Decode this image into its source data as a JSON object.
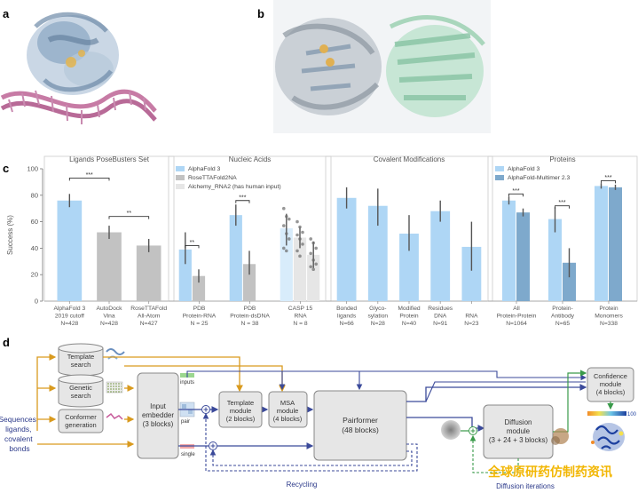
{
  "panels": {
    "a": "a",
    "b": "b",
    "c": "c",
    "d": "d"
  },
  "chart_data": [
    {
      "type": "bar",
      "title": "Ligands PoseBusters Set",
      "ylabel": "Success (%)",
      "ylim": [
        0,
        100
      ],
      "yticks": [
        "0",
        "20",
        "40",
        "60",
        "80",
        "100"
      ],
      "categories": [
        [
          "AlphaFold 3",
          "2019 cutoff",
          "N=428"
        ],
        [
          "AutoDock",
          "Vina",
          "N=428"
        ],
        [
          "RoseTTAFold",
          "All-Atom",
          "N=427"
        ]
      ],
      "values": [
        76,
        52,
        42
      ],
      "errors": [
        [
          71,
          81
        ],
        [
          47,
          57
        ],
        [
          37,
          47
        ]
      ],
      "colors": [
        "#aed6f5",
        "#c2c2c2",
        "#c2c2c2"
      ],
      "significance": [
        {
          "from": 0,
          "to": 1,
          "label": "***",
          "y": 93
        },
        {
          "from": 1,
          "to": 2,
          "label": "**",
          "y": 64
        }
      ]
    },
    {
      "type": "bar",
      "title": "Nucleic Acids",
      "legend": [
        {
          "name": "AlphaFold 3",
          "color": "#aed6f5"
        },
        {
          "name": "RoseTTAFold2NA",
          "color": "#c2c2c2"
        },
        {
          "name": "Alchemy_RNA2 (has human input)",
          "color": "#e6e6e6"
        }
      ],
      "categories": [
        [
          "PDB",
          "Protein-RNA",
          "N = 25"
        ],
        [
          "PDB",
          "Protein-dsDNA",
          "N = 38"
        ],
        [
          "CASP 15",
          "RNA",
          "N = 8"
        ]
      ],
      "series": [
        {
          "name": "AlphaFold 3",
          "values": [
            39,
            65,
            55
          ],
          "errors": [
            [
              28,
              52
            ],
            [
              57,
              73
            ],
            [
              42,
              66
            ]
          ],
          "color": "#aed6f5",
          "lightColor": "#d8ecfb"
        },
        {
          "name": "RoseTTAFold2NA",
          "values": [
            19,
            28,
            48
          ],
          "errors": [
            [
              14,
              24
            ],
            [
              20,
              38
            ],
            [
              40,
              56
            ]
          ],
          "color": "#c2c2c2",
          "lightColor": "#e6e6e6"
        },
        {
          "name": "Alchemy_RNA2 (has human input)",
          "values": [
            null,
            null,
            35
          ],
          "errors": [
            null,
            null,
            [
              25,
              45
            ]
          ],
          "color": "#e6e6e6",
          "lightColor": "#e6e6e6"
        }
      ],
      "significance": [
        {
          "group": 0,
          "label": "**",
          "y": 42
        },
        {
          "group": 1,
          "label": "***",
          "y": 76
        }
      ],
      "points": [
        {
          "group": 2,
          "series": 0,
          "values": [
            70,
            64,
            62,
            57,
            51,
            47,
            40,
            38
          ]
        },
        {
          "group": 2,
          "series": 1,
          "values": [
            60,
            56,
            52,
            50,
            47,
            43,
            38,
            34
          ]
        },
        {
          "group": 2,
          "series": 2,
          "values": [
            47,
            44,
            40,
            36,
            31,
            28,
            26,
            24
          ]
        }
      ]
    },
    {
      "type": "bar",
      "title": "Covalent Modifications",
      "categories": [
        [
          "Bonded",
          "ligands",
          "N=66"
        ],
        [
          "Glyco-",
          "sylation",
          "N=28"
        ],
        [
          "Modified",
          "Protein",
          "N=40"
        ],
        [
          "Residues",
          "DNA",
          "N=91"
        ],
        [
          "",
          "RNA",
          "N=23"
        ]
      ],
      "values": [
        78,
        72,
        51,
        68,
        41
      ],
      "errors": [
        [
          70,
          86
        ],
        [
          57,
          85
        ],
        [
          38,
          65
        ],
        [
          60,
          76
        ],
        [
          23,
          60
        ]
      ],
      "colors": [
        "#aed6f5",
        "#aed6f5",
        "#aed6f5",
        "#aed6f5",
        "#aed6f5"
      ]
    },
    {
      "type": "bar",
      "title": "Proteins",
      "legend": [
        {
          "name": "AlphaFold 3",
          "color": "#aed6f5"
        },
        {
          "name": "AlphaFold-Multimer 2.3",
          "color": "#7ea9cc"
        }
      ],
      "categories": [
        [
          "All",
          "Protein-Protein",
          "N=1064"
        ],
        [
          "Protein-",
          "Antibody",
          "N=65"
        ],
        [
          "Protein",
          "Monomers",
          "N=338"
        ]
      ],
      "series": [
        {
          "name": "AlphaFold 3",
          "values": [
            76,
            62,
            87
          ],
          "errors": [
            [
              73,
              79
            ],
            [
              52,
              71
            ],
            [
              85,
              89
            ]
          ],
          "color": "#aed6f5"
        },
        {
          "name": "AlphaFold-Multimer 2.3",
          "values": [
            67,
            29,
            86
          ],
          "errors": [
            [
              64,
              70
            ],
            [
              18,
              40
            ],
            [
              84,
              88
            ]
          ],
          "color": "#7ea9cc"
        }
      ],
      "significance": [
        {
          "group": 0,
          "label": "***",
          "y": 81
        },
        {
          "group": 1,
          "label": "***",
          "y": 72
        },
        {
          "group": 2,
          "label": "***",
          "y": 91
        }
      ]
    }
  ],
  "diagram": {
    "inputs_label": [
      "Sequences,",
      "ligands,",
      "covalent",
      "bonds"
    ],
    "template_search": [
      "Template",
      "search"
    ],
    "genetic_search": [
      "Genetic",
      "search"
    ],
    "conformer_generation": [
      "Conformer",
      "generation"
    ],
    "input_embedder": [
      "Input",
      "embedder",
      "(3 blocks)"
    ],
    "template_module": [
      "Template",
      "module",
      "(2 blocks)"
    ],
    "msa_module": [
      "MSA",
      "module",
      "(4 blocks)"
    ],
    "pairformer": [
      "Pairformer",
      "(48 blocks)"
    ],
    "diffusion_module": [
      "Diffusion",
      "module",
      "(3 + 24 + 3 blocks)"
    ],
    "confidence_module": [
      "Confidence",
      "module",
      "(4 blocks)"
    ],
    "tag_inputs": "inputs",
    "tag_pair": "pair",
    "tag_single": "single",
    "recycling": "Recycling",
    "diffusion_iterations": "Diffusion iterations",
    "scale_max": "100",
    "watermark": "全球原研药仿制药资讯"
  },
  "colors": {
    "af3": "#aed6f5",
    "af3_light": "#d8ecfb",
    "grey": "#c2c2c2",
    "grey_light": "#e6e6e6",
    "multimer": "#7ea9cc",
    "arrow_blue": "#3b4a9a",
    "arrow_orange": "#d99a1e",
    "box_fill": "#e6e6e6",
    "watermark": "#f2b705"
  }
}
